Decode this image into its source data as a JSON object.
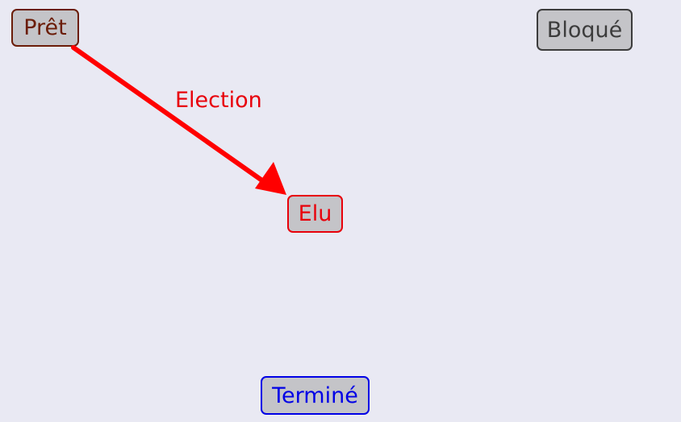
{
  "nodes": {
    "pret": {
      "label": "Prêt",
      "color": "#6b1d08"
    },
    "bloque": {
      "label": "Bloqué",
      "color": "#3c3c3c"
    },
    "elu": {
      "label": "Elu",
      "color": "#e8000a"
    },
    "termine": {
      "label": "Terminé",
      "color": "#0000e6"
    }
  },
  "node_fill": "#c4c4c8",
  "background": "#e9e9f3",
  "edges": [
    {
      "from": "pret",
      "to": "elu",
      "label": "Election",
      "color": "#ff0000"
    }
  ]
}
